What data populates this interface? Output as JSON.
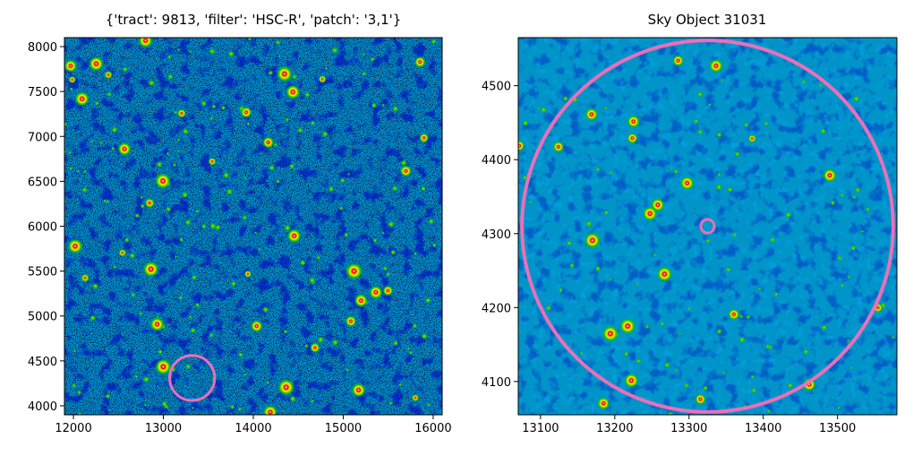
{
  "chart_data": [
    {
      "type": "image",
      "title": "{'tract': 9813, 'filter': 'HSC-R', 'patch': '3,1'}",
      "xlim": [
        11900,
        16100
      ],
      "ylim": [
        3900,
        8100
      ],
      "xticks": [
        12000,
        13000,
        14000,
        15000,
        16000
      ],
      "yticks": [
        4000,
        4500,
        5000,
        5500,
        6000,
        6500,
        7000,
        7500,
        8000
      ],
      "colormap": "nipy_spectral",
      "marker": {
        "shape": "circle",
        "x": 13320,
        "y": 4310,
        "radius": 250,
        "color": "#ec6fb8"
      }
    },
    {
      "type": "image",
      "title": "Sky Object 31031",
      "xlim": [
        13070,
        13580
      ],
      "ylim": [
        4055,
        4565
      ],
      "xticks": [
        13100,
        13200,
        13300,
        13400,
        13500
      ],
      "yticks": [
        4100,
        4200,
        4300,
        4400,
        4500
      ],
      "colormap": "nipy_spectral",
      "markers": [
        {
          "shape": "circle",
          "x": 13325,
          "y": 4310,
          "radius": 250,
          "color": "#ec6fb8"
        },
        {
          "shape": "circle",
          "x": 13325,
          "y": 4310,
          "radius": 9,
          "color": "#ec6fb8"
        }
      ]
    }
  ]
}
